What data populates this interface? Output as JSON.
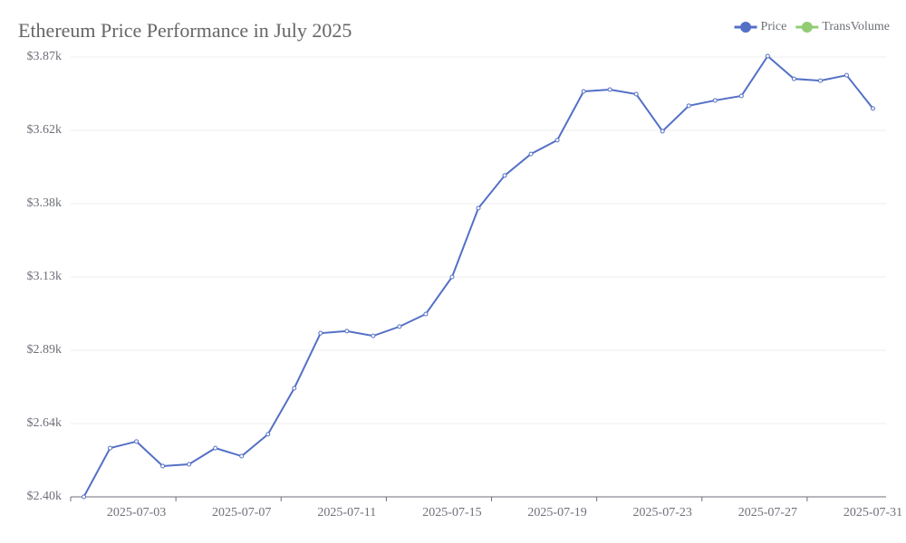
{
  "chart_data": {
    "type": "line",
    "title": "Ethereum Price Performance in July 2025",
    "categories": [
      null,
      null,
      "2025-07-03",
      null,
      null,
      null,
      "2025-07-07",
      null,
      null,
      null,
      "2025-07-11",
      null,
      null,
      null,
      "2025-07-15",
      null,
      null,
      null,
      "2025-07-19",
      null,
      null,
      null,
      "2025-07-23",
      null,
      null,
      null,
      "2025-07-27",
      null,
      null,
      null,
      "2025-07-31"
    ],
    "series": [
      {
        "name": "Price",
        "color": "#5470c6",
        "values": [
          2400,
          2563,
          2585,
          2503,
          2509,
          2563,
          2536,
          2609,
          2763,
          2947,
          2954,
          2938,
          2969,
          3011,
          3135,
          3365,
          3474,
          3546,
          3592,
          3755,
          3761,
          3746,
          3622,
          3707,
          3725,
          3740,
          3873,
          3797,
          3791,
          3809,
          3698
        ]
      },
      {
        "name": "TransVolume",
        "color": "#91cc75",
        "values": [
          null,
          null,
          null,
          null,
          null,
          null,
          null,
          null,
          null,
          null,
          null,
          null,
          null,
          null,
          null,
          null,
          null,
          null,
          null,
          null,
          null,
          null,
          null,
          null,
          null,
          null,
          null,
          null,
          null,
          null,
          null
        ]
      }
    ],
    "ylim": [
      2400,
      3870
    ],
    "yticks": [
      {
        "value": 2400,
        "label": "$2.40k"
      },
      {
        "value": 2645,
        "label": "$2.64k"
      },
      {
        "value": 2890,
        "label": "$2.89k"
      },
      {
        "value": 3135,
        "label": "$3.13k"
      },
      {
        "value": 3380,
        "label": "$3.38k"
      },
      {
        "value": 3625,
        "label": "$3.62k"
      },
      {
        "value": 3870,
        "label": "$3.87k"
      }
    ],
    "grid": true,
    "legend": "top-right"
  }
}
